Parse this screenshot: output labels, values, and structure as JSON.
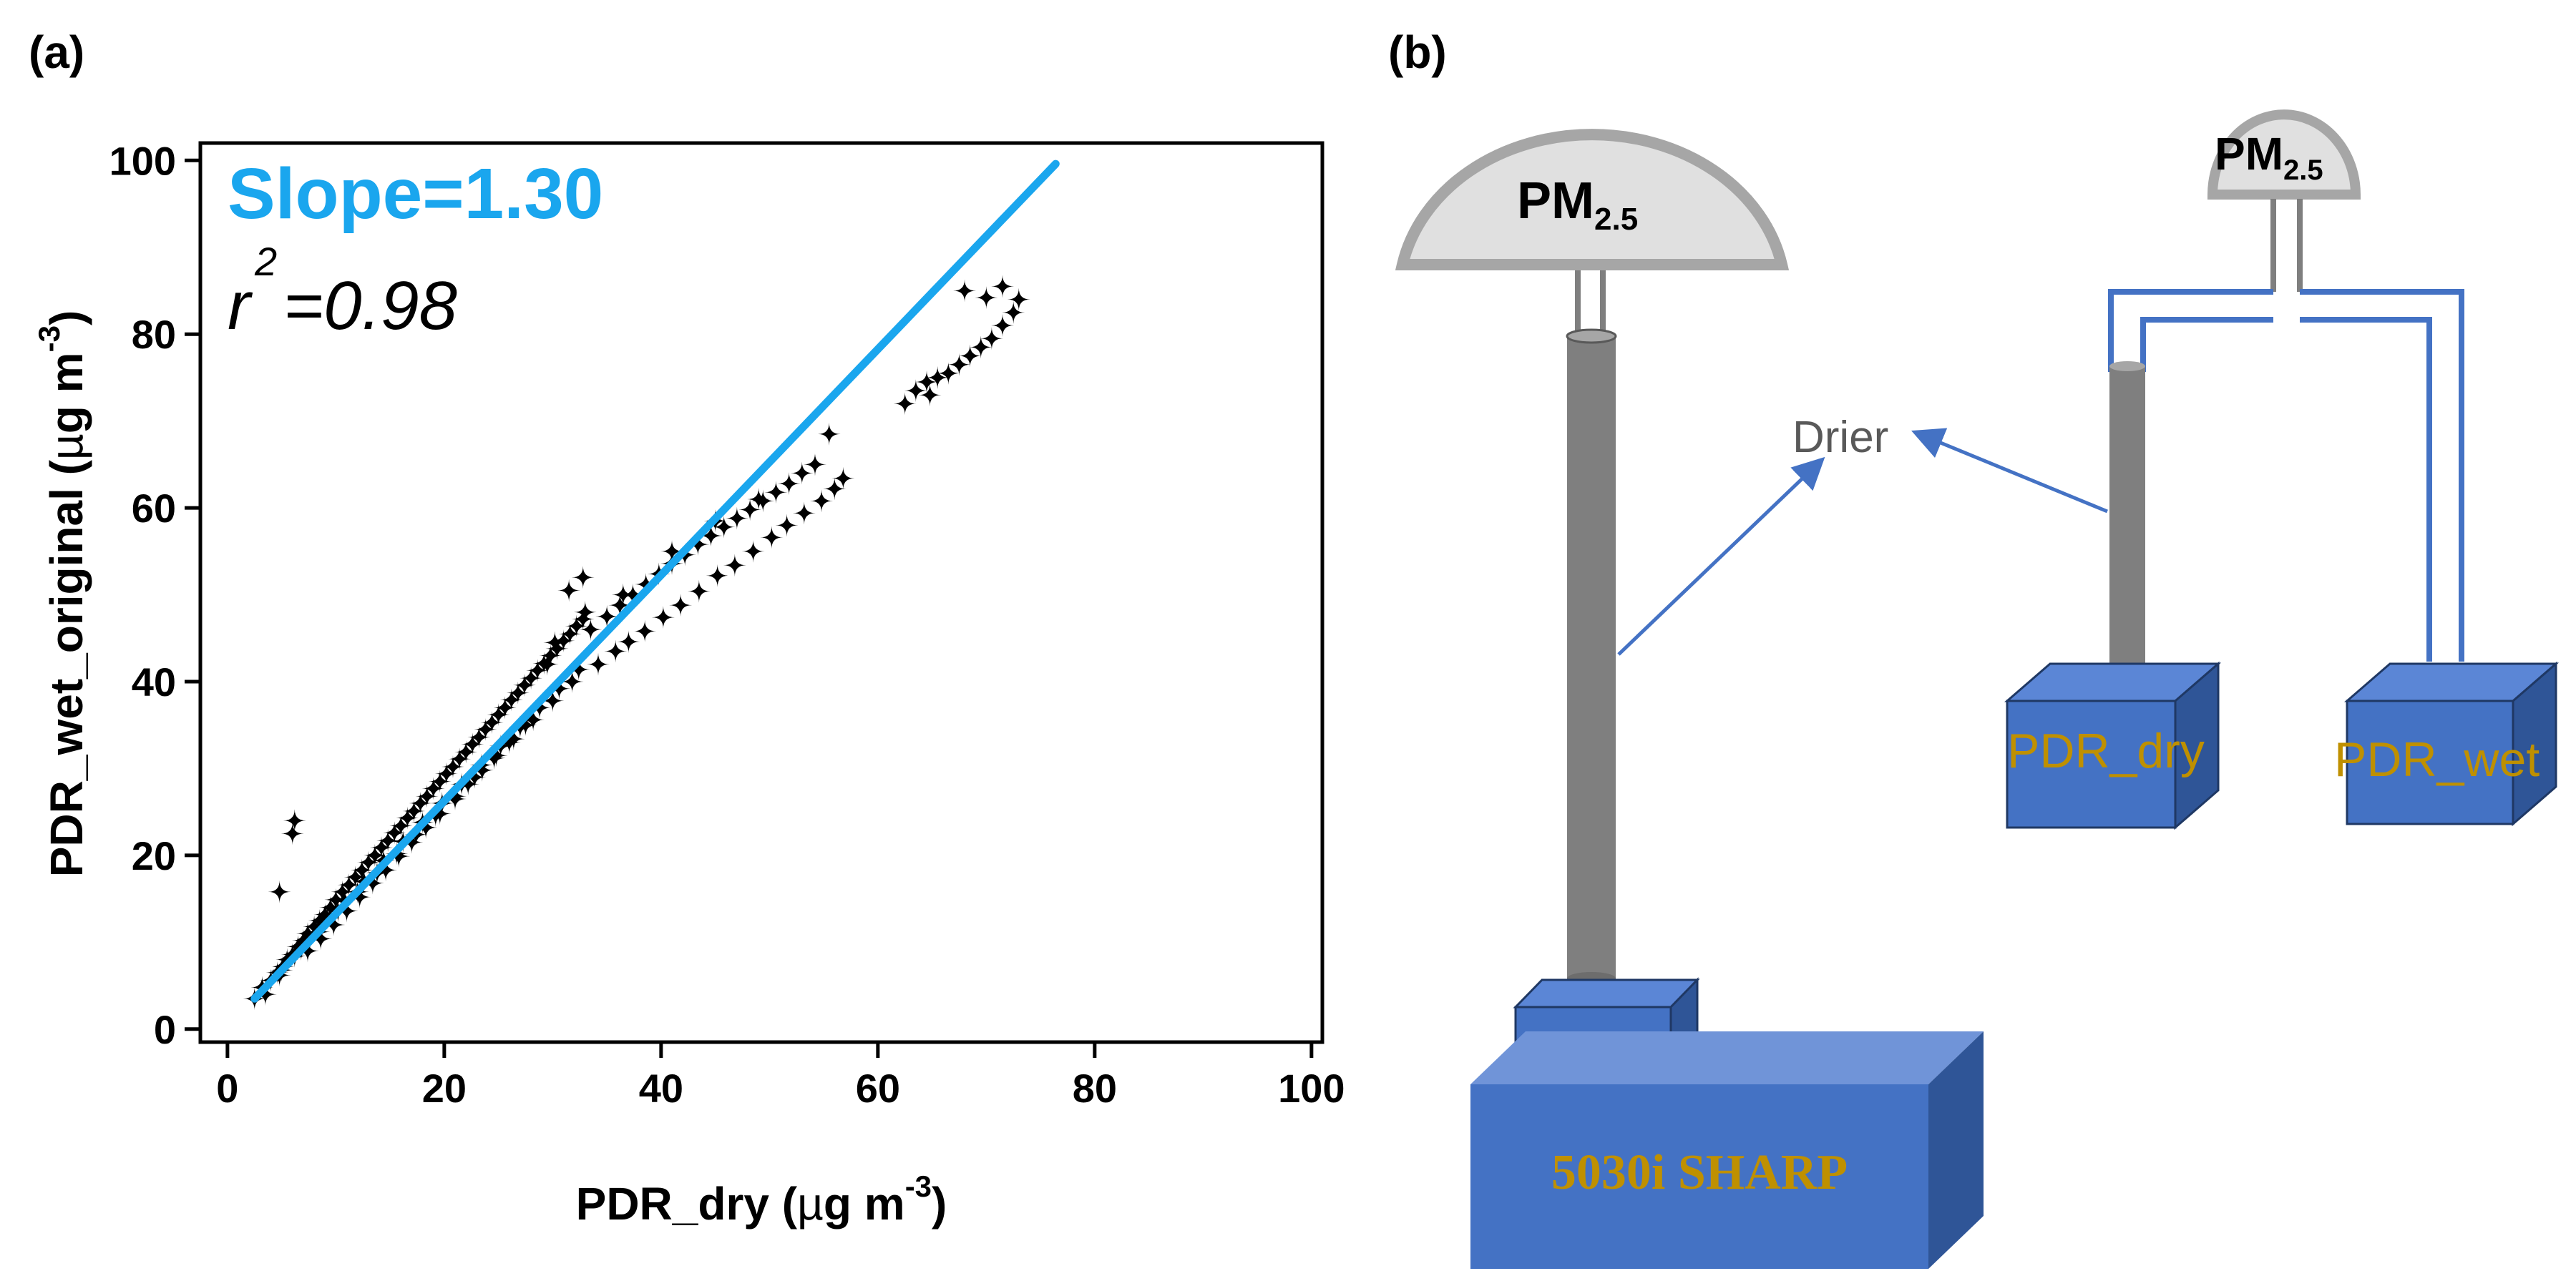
{
  "panels": {
    "a": {
      "label": "(a)"
    },
    "b": {
      "label": "(b)"
    }
  },
  "colors": {
    "fit_line": "#1aa6ee",
    "marker": "#000000",
    "box_face": "#4472c4",
    "box_side": "#2f5597",
    "box_top": "#5b86d6",
    "box_text": "#bf9000",
    "tube": "#7f7f7f",
    "inlet_fill": "#e0e0e0",
    "inlet_stroke": "#a6a6a6",
    "arrow": "#4472c4",
    "drier_text": "#595959"
  },
  "chart_data": {
    "type": "scatter",
    "title": "",
    "xlabel": "PDR_dry (µg m⁻³)",
    "ylabel": "PDR_wet_original (µg m⁻³)",
    "xlabel_main": "PDR_dry (",
    "xlabel_mu": "µ",
    "xlabel_unit": "g m",
    "xlabel_exp": "-3",
    "xlabel_close": ")",
    "ylabel_main": "PDR_wet_original (",
    "ylabel_mu": "µ",
    "ylabel_unit": "g m",
    "ylabel_exp": "-3",
    "ylabel_close": ")",
    "xlim": [
      -2.5,
      101
    ],
    "ylim": [
      -1.5,
      102
    ],
    "xticks": [
      0,
      20,
      40,
      60,
      80,
      100
    ],
    "yticks": [
      0,
      20,
      40,
      60,
      80,
      100
    ],
    "grid": false,
    "marker": "four-point-star",
    "series": [
      {
        "name": "observations",
        "x": [
          2.5,
          3.2,
          4.0,
          4.6,
          5.1,
          5.5,
          6.0,
          6.5,
          7.0,
          7.4,
          8.0,
          8.5,
          9.0,
          9.5,
          10.0,
          10.6,
          11.2,
          11.8,
          12.4,
          13.0,
          13.6,
          14.2,
          14.8,
          15.4,
          16.0,
          16.6,
          17.2,
          17.8,
          18.4,
          19.0,
          19.6,
          20.2,
          20.8,
          21.4,
          22.0,
          22.6,
          23.2,
          23.8,
          24.4,
          25.0,
          25.6,
          26.2,
          26.8,
          27.4,
          28.0,
          28.6,
          29.2,
          29.8,
          30.4,
          31.0,
          31.6,
          32.2,
          32.8,
          3.5,
          4.8,
          6.2,
          7.6,
          9.2,
          10.8,
          12.6,
          14.4,
          16.2,
          18.0,
          19.8,
          21.6,
          23.4,
          25.2,
          27.0,
          28.8,
          30.6,
          32.4,
          5.0,
          6.8,
          8.4,
          10.2,
          12.0,
          13.8,
          15.6,
          17.4,
          19.2,
          21.0,
          22.8,
          24.6,
          26.4,
          28.2,
          30.0,
          31.8,
          33.5,
          35.0,
          36.2,
          37.4,
          38.6,
          39.8,
          41.0,
          42.2,
          43.4,
          44.6,
          45.8,
          47.0,
          48.2,
          49.4,
          50.6,
          51.8,
          53.0,
          54.2,
          34.2,
          35.8,
          37.0,
          38.5,
          40.2,
          41.8,
          43.5,
          45.2,
          46.8,
          48.5,
          50.2,
          51.6,
          53.2,
          54.8,
          56.0,
          56.8,
          55.5,
          6.2,
          6.0,
          4.8,
          62.5,
          63.5,
          64.5,
          65.5,
          66.5,
          67.5,
          68.5,
          69.5,
          70.5,
          71.5,
          72.5,
          73.0,
          68.0,
          70.0,
          71.5,
          64.8,
          33.0,
          31.5,
          32.8,
          30.2,
          29.5,
          36.5,
          41.0,
          45.0,
          49.0,
          27.5,
          26.0,
          24.8,
          23.5,
          22.2,
          21.0,
          19.6,
          18.3,
          17.0,
          15.8,
          14.6,
          13.4,
          12.2,
          11.0,
          9.8,
          8.6,
          7.4
        ],
        "y": [
          3.5,
          4.8,
          5.6,
          6.5,
          7.2,
          8.0,
          8.6,
          9.5,
          10.2,
          11.0,
          11.8,
          12.5,
          13.2,
          14.0,
          14.9,
          15.8,
          16.6,
          17.5,
          18.3,
          19.2,
          20.0,
          20.9,
          21.7,
          22.6,
          23.4,
          24.3,
          25.1,
          26.0,
          26.8,
          27.7,
          28.5,
          29.4,
          30.2,
          31.1,
          31.9,
          32.8,
          33.6,
          34.5,
          35.3,
          36.2,
          37.0,
          37.9,
          38.7,
          39.6,
          40.4,
          41.3,
          42.1,
          43.0,
          43.8,
          44.7,
          45.5,
          46.4,
          47.2,
          4.0,
          6.2,
          8.4,
          10.4,
          12.8,
          14.8,
          17.0,
          19.4,
          21.6,
          23.8,
          26.0,
          28.2,
          30.4,
          32.6,
          34.8,
          37.0,
          39.2,
          41.4,
          6.8,
          9.2,
          11.2,
          13.6,
          15.8,
          18.0,
          20.2,
          22.4,
          24.6,
          26.8,
          29.0,
          31.2,
          33.4,
          35.6,
          37.8,
          40.0,
          46.0,
          47.5,
          48.8,
          50.0,
          51.2,
          52.4,
          53.6,
          54.6,
          55.8,
          56.8,
          57.8,
          58.8,
          59.8,
          60.8,
          61.8,
          62.8,
          64.0,
          65.0,
          42.0,
          43.5,
          44.6,
          45.8,
          47.4,
          48.8,
          50.4,
          52.2,
          53.4,
          55.0,
          56.6,
          58.0,
          59.4,
          60.8,
          62.2,
          63.4,
          68.5,
          24.0,
          22.5,
          15.8,
          72.0,
          73.5,
          74.5,
          75.0,
          75.5,
          76.5,
          77.5,
          78.5,
          79.5,
          81.0,
          82.5,
          84.0,
          85.0,
          84.2,
          85.5,
          73.0,
          48.0,
          50.5,
          52.0,
          44.5,
          42.0,
          50.0,
          55.0,
          58.5,
          61.0,
          35.0,
          33.0,
          31.5,
          29.8,
          28.2,
          26.5,
          24.8,
          23.2,
          21.5,
          19.9,
          18.3,
          16.8,
          15.2,
          13.6,
          12.0,
          10.4,
          9.0
        ]
      },
      {
        "name": "fit",
        "x": [
          2.5,
          76.4
        ],
        "y": [
          3.5,
          99.6
        ]
      }
    ],
    "slope_label": "Slope=1.30",
    "r2_symbol": "r",
    "r2_exp": "2",
    "r2_value": "=0.98"
  },
  "diagram": {
    "instrument_main": "5030i SHARP",
    "inlet_left_pm": "PM",
    "inlet_left_sub": "2.5",
    "inlet_right_pm": "PM",
    "inlet_right_sub": "2.5",
    "drier": "Drier",
    "box_dry": "PDR_dry",
    "box_wet": "PDR_wet"
  }
}
